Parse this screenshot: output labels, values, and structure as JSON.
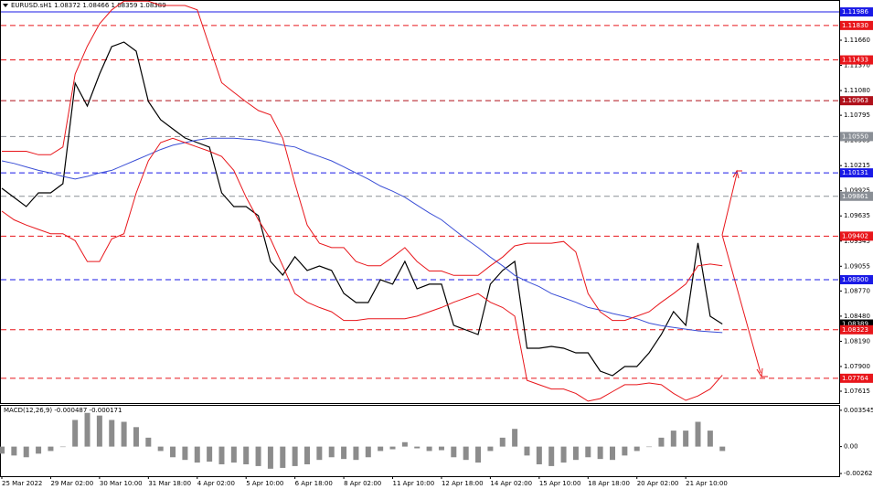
{
  "chart_data": [
    {
      "type": "line",
      "title": "EURUSD.sH1  1.08372 1.08466 1.08359 1.08389",
      "categories": [
        "25 Mar 2022",
        null,
        null,
        null,
        "29 Mar 02:00",
        null,
        null,
        null,
        "30 Mar 10:00",
        null,
        null,
        null,
        "31 Mar 18:00",
        null,
        null,
        null,
        "4 Apr 02:00",
        null,
        null,
        null,
        "5 Apr 10:00",
        null,
        null,
        null,
        "6 Apr 18:00",
        null,
        null,
        null,
        "8 Apr 02:00",
        null,
        null,
        null,
        "11 Apr 10:00",
        null,
        null,
        null,
        "12 Apr 18:00",
        null,
        null,
        null,
        "14 Apr 02:00",
        null,
        null,
        null,
        "15 Apr 10:00",
        null,
        null,
        null,
        "18 Apr 18:00",
        null,
        null,
        null,
        "20 Apr 02:00",
        null,
        null,
        null,
        "21 Apr 10:00",
        null,
        null,
        null
      ],
      "series": [
        {
          "color": "#000000",
          "values": [
            1.09954,
            1.09848,
            1.09743,
            1.09901,
            1.09901,
            1.10006,
            1.11165,
            1.10902,
            1.1127,
            1.11586,
            1.11639,
            1.11534,
            1.10954,
            1.10744,
            1.10638,
            1.10533,
            1.1048,
            1.10428,
            1.09901,
            1.09743,
            1.09743,
            1.09638,
            1.09111,
            1.08953,
            1.09164,
            1.09006,
            1.09058,
            1.09006,
            1.08742,
            1.08637,
            1.08637,
            1.089,
            1.08848,
            1.09111,
            1.08795,
            1.08848,
            1.08848,
            1.08374,
            1.08321,
            1.08268,
            1.08848,
            1.09006,
            1.09111,
            1.0811,
            1.0811,
            1.08131,
            1.0811,
            1.08057,
            1.08057,
            1.07847,
            1.07794,
            1.07899,
            1.07899,
            1.08057,
            1.08268,
            1.08532,
            1.08374,
            1.09322,
            1.08479,
            1.08389
          ]
        },
        {
          "color": "#3b4fd6",
          "values": [
            1.1027,
            1.1024,
            1.102,
            1.1016,
            1.1013,
            1.1009,
            1.1006,
            1.1009,
            1.1013,
            1.1016,
            1.1022,
            1.1028,
            1.1034,
            1.104,
            1.1045,
            1.1048,
            1.1051,
            1.1053,
            1.1053,
            1.1053,
            1.1052,
            1.1051,
            1.1048,
            1.1045,
            1.1043,
            1.1037,
            1.1032,
            1.1027,
            1.102,
            1.1013,
            1.1006,
            1.0998,
            1.0992,
            1.0985,
            1.0976,
            1.0967,
            1.0959,
            1.0948,
            1.0937,
            1.0927,
            1.0916,
            1.0906,
            1.0895,
            1.0888,
            1.0882,
            1.0874,
            1.0869,
            1.0864,
            1.0858,
            1.0855,
            1.0851,
            1.0848,
            1.0845,
            1.084,
            1.0837,
            1.0835,
            1.0833,
            1.0831,
            1.083,
            1.0829
          ]
        },
        {
          "color": "#e8161b",
          "values": [
            1.1038,
            1.1038,
            1.1038,
            1.1034,
            1.1034,
            1.1043,
            1.1127,
            1.1159,
            1.1185,
            1.1201,
            1.1211,
            1.1211,
            1.1211,
            1.1206,
            1.1206,
            1.1206,
            1.1201,
            1.1159,
            1.1117,
            1.1106,
            1.1095,
            1.1085,
            1.108,
            1.1053,
            1.1001,
            1.0953,
            1.0932,
            1.0927,
            1.0927,
            1.0911,
            1.0906,
            1.0906,
            1.0916,
            1.0927,
            1.0911,
            1.09,
            1.09,
            1.0895,
            1.0895,
            1.0895,
            1.0906,
            1.0916,
            1.0929,
            1.0932,
            1.0932,
            1.0932,
            1.0934,
            1.0922,
            1.0874,
            1.0853,
            1.0843,
            1.0843,
            1.0848,
            1.0853,
            1.0864,
            1.0874,
            1.0885,
            1.0906,
            1.0908,
            1.0906
          ]
        },
        {
          "color": "#e8161b",
          "values": [
            1.0969,
            1.0959,
            1.0953,
            1.0948,
            1.0943,
            1.0943,
            1.0935,
            1.0911,
            1.0911,
            1.0937,
            1.0943,
            1.099,
            1.1027,
            1.1048,
            1.1053,
            1.1048,
            1.1043,
            1.1038,
            1.1032,
            1.1016,
            1.0985,
            1.0959,
            1.0937,
            1.0906,
            1.0874,
            1.0864,
            1.0858,
            1.0853,
            1.0843,
            1.0843,
            1.0845,
            1.0845,
            1.0845,
            1.0845,
            1.0848,
            1.0853,
            1.0858,
            1.0864,
            1.0869,
            1.0874,
            1.0864,
            1.0858,
            1.0848,
            1.0774,
            1.0769,
            1.0764,
            1.0764,
            1.0759,
            1.075,
            1.0753,
            1.0761,
            1.0769,
            1.0769,
            1.0771,
            1.0769,
            1.0759,
            1.0751,
            1.0756,
            1.0764,
            1.078
          ]
        }
      ],
      "ylim": [
        1.07478,
        1.12113
      ],
      "yticks": [
        {
          "value": 1.1166,
          "label": "1.11660"
        },
        {
          "value": 1.1137,
          "label": "1.11370"
        },
        {
          "value": 1.1108,
          "label": "1.11080"
        },
        {
          "value": 1.10795,
          "label": "1.10795"
        },
        {
          "value": 1.10505,
          "label": "1.10505"
        },
        {
          "value": 1.10215,
          "label": "1.10215"
        },
        {
          "value": 1.09925,
          "label": "1.09925"
        },
        {
          "value": 1.09635,
          "label": "1.09635"
        },
        {
          "value": 1.09345,
          "label": "1.09345"
        },
        {
          "value": 1.09055,
          "label": "1.09055"
        },
        {
          "value": 1.0877,
          "label": "1.08770"
        },
        {
          "value": 1.0848,
          "label": "1.08480"
        },
        {
          "value": 1.0819,
          "label": "1.08190"
        },
        {
          "value": 1.079,
          "label": "1.07900"
        },
        {
          "value": 1.07615,
          "label": "1.07615"
        }
      ],
      "levels": [
        {
          "value": 1.11986,
          "label": "1.11986",
          "color": "#1a1ae6",
          "style": "solid"
        },
        {
          "value": 1.1183,
          "label": "1.11830",
          "color": "#e8161b",
          "style": "dashed"
        },
        {
          "value": 1.11433,
          "label": "1.11433",
          "color": "#e8161b",
          "style": "dashed"
        },
        {
          "value": 1.10963,
          "label": "1.10963",
          "color": "#b0101a",
          "style": "dashed"
        },
        {
          "value": 1.1055,
          "label": "1.10550",
          "color": "#8a8f96",
          "style": "dashed"
        },
        {
          "value": 1.10131,
          "label": "1.10131",
          "color": "#1a1ae6",
          "style": "dashed"
        },
        {
          "value": 1.09861,
          "label": "1.09861",
          "color": "#8a8f96",
          "style": "dashed"
        },
        {
          "value": 1.09402,
          "label": "1.09402",
          "color": "#e8161b",
          "style": "dashed"
        },
        {
          "value": 1.089,
          "label": "1.08900",
          "color": "#1a1ae6",
          "style": "dashed"
        },
        {
          "value": 1.08389,
          "label": "1.08389",
          "color": "#000000",
          "style": "none"
        },
        {
          "value": 1.08323,
          "label": "1.08323",
          "color": "#e8161b",
          "style": "dashed"
        },
        {
          "value": 1.07764,
          "label": "1.07764",
          "color": "#e8161b",
          "style": "dashed"
        }
      ],
      "grid": false
    },
    {
      "type": "bar",
      "title": "MACD(12,26,9) -0.000487 -0.000171",
      "color": "#8c8c8c",
      "values": [
        -0.00069,
        -0.00087,
        -0.00104,
        -0.00069,
        -0.00043,
        0,
        0.0026,
        0.00329,
        0.00303,
        0.0026,
        0.00242,
        0.0019,
        0.00087,
        -0.00043,
        -0.00104,
        -0.0013,
        -0.00156,
        -0.00147,
        -0.00173,
        -0.00156,
        -0.00173,
        -0.0019,
        -0.00216,
        -0.00208,
        -0.0019,
        -0.00173,
        -0.0013,
        -0.00104,
        -0.00121,
        -0.0013,
        -0.00104,
        -0.00043,
        -0.00026,
        0.00043,
        -0.00017,
        -0.00043,
        -0.00035,
        -0.00104,
        -0.0013,
        -0.00156,
        -0.00043,
        0.00087,
        0.00173,
        -0.00087,
        -0.00173,
        -0.0019,
        -0.00156,
        -0.0013,
        -0.00104,
        -0.00121,
        -0.0013,
        -0.00087,
        -0.00043,
        0,
        0.00087,
        0.00156,
        0.00156,
        0.00242,
        0.00156,
        -0.00043
      ],
      "ylim": [
        -0.00289,
        0.00398
      ],
      "yticks": [
        0.003545,
        {
          "value": 0,
          "label": "0.00"
        },
        -0.002627
      ],
      "grid": false
    }
  ]
}
